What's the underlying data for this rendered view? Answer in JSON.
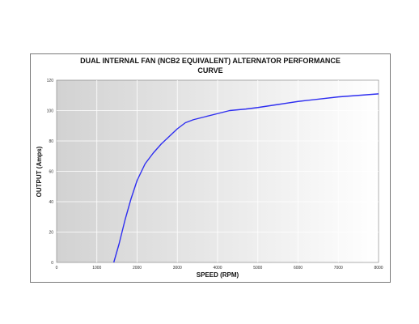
{
  "chart_data": {
    "type": "line",
    "title_line1": "DUAL INTERNAL FAN (NCB2 EQUIVALENT) ALTERNATOR PERFORMANCE",
    "title_line2": "CURVE",
    "xlabel": "SPEED (RPM)",
    "ylabel": "OUTPUT (Amps)",
    "xlim": [
      0,
      8000
    ],
    "ylim": [
      0,
      120
    ],
    "xticks": [
      "0",
      "1000",
      "2000",
      "3000",
      "4000",
      "5000",
      "6000",
      "7000",
      "8000"
    ],
    "yticks": [
      "0",
      "20",
      "40",
      "60",
      "80",
      "100",
      "120"
    ],
    "grid": true,
    "line_color": "#2e2ef0",
    "series": [
      {
        "x": [
          1420,
          1550,
          1700,
          1850,
          2000,
          2200,
          2400,
          2600,
          2800,
          3000,
          3200,
          3400,
          3700,
          4000,
          4300,
          4700,
          5000,
          5500,
          6000,
          6500,
          7000,
          7500,
          8000
        ],
        "y": [
          0,
          12,
          28,
          42,
          54,
          65,
          72,
          78,
          83,
          88,
          92,
          94,
          96,
          98,
          100,
          101,
          102,
          104,
          106,
          107.5,
          109,
          110,
          111
        ]
      }
    ]
  }
}
